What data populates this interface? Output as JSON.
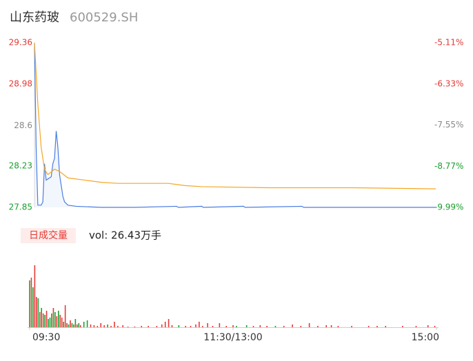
{
  "chart_data": [
    {
      "type": "line",
      "title": "山东药玻",
      "subtitle": "600529.SH",
      "ylim": [
        27.85,
        29.36
      ],
      "yticks": [
        29.36,
        28.98,
        28.6,
        {
          "value": 28.23,
          "label": "28.23"
        },
        27.85
      ],
      "y2lim": [
        -9.99,
        -5.11
      ],
      "y2ticks": [
        {
          "value": -5.11,
          "label": "-5.11%"
        },
        {
          "value": -6.33,
          "label": "-6.33%"
        },
        {
          "value": -7.55,
          "label": "-7.55%"
        },
        {
          "value": -8.77,
          "label": "-8.77%"
        },
        {
          "value": -9.99,
          "label": "-9.99%"
        }
      ],
      "tick_colors": [
        "#e53935",
        "#e53935",
        "#888888",
        "#1a9e2f",
        "#1a9e2f"
      ],
      "xlim": [
        0,
        240
      ],
      "series": [
        {
          "color": "#4a7de0",
          "x": [
            0,
            1,
            2,
            4,
            5,
            6,
            7,
            10,
            11,
            12,
            13,
            14,
            15,
            16,
            17,
            18,
            20,
            25,
            40,
            60,
            85,
            86,
            100,
            101,
            125,
            126,
            160,
            161,
            240
          ],
          "values": [
            29.36,
            28.4,
            27.87,
            27.87,
            27.9,
            28.25,
            28.1,
            28.13,
            28.25,
            28.3,
            28.55,
            28.4,
            28.15,
            28.05,
            27.95,
            27.9,
            27.87,
            27.86,
            27.85,
            27.85,
            27.86,
            27.85,
            27.86,
            27.85,
            27.86,
            27.85,
            27.86,
            27.85,
            27.85
          ]
        },
        {
          "color": "#f5a623",
          "x": [
            0,
            2,
            4,
            6,
            8,
            12,
            15,
            20,
            30,
            40,
            50,
            80,
            90,
            100,
            140,
            190,
            240
          ],
          "values": [
            29.36,
            28.8,
            28.4,
            28.2,
            28.15,
            28.2,
            28.18,
            28.12,
            28.1,
            28.08,
            28.07,
            28.07,
            28.05,
            28.04,
            28.03,
            28.03,
            28.02
          ]
        }
      ]
    },
    {
      "type": "bar",
      "title": "日成交量",
      "subtitle": "vol: 26.43万手",
      "xlim": [
        0,
        240
      ],
      "ylim": [
        0,
        90
      ],
      "xticks": [
        {
          "value": 0,
          "label": "09:30"
        },
        {
          "value": 120,
          "label": "11:30/13:00"
        },
        {
          "value": 240,
          "label": "15:00"
        }
      ],
      "x": [
        0,
        1,
        2,
        3,
        4,
        5,
        6,
        7,
        8,
        9,
        10,
        11,
        12,
        13,
        14,
        15,
        16,
        17,
        18,
        19,
        20,
        21,
        22,
        23,
        24,
        25,
        26,
        27,
        28,
        29,
        30,
        32,
        34,
        36,
        38,
        40,
        42,
        44,
        46,
        48,
        50,
        52,
        55,
        58,
        62,
        66,
        70,
        75,
        78,
        80,
        82,
        84,
        88,
        92,
        95,
        98,
        100,
        102,
        105,
        108,
        112,
        116,
        120,
        122,
        128,
        132,
        136,
        140,
        145,
        150,
        155,
        160,
        165,
        170,
        175,
        178,
        182,
        190,
        200,
        205,
        210,
        220,
        228,
        235,
        239
      ],
      "values": [
        68,
        72,
        58,
        90,
        44,
        42,
        22,
        28,
        20,
        18,
        24,
        12,
        14,
        20,
        28,
        22,
        16,
        24,
        18,
        14,
        8,
        32,
        6,
        4,
        10,
        6,
        4,
        12,
        4,
        6,
        3,
        8,
        10,
        4,
        3,
        2,
        6,
        3,
        4,
        2,
        8,
        2,
        3,
        1,
        1,
        2,
        2,
        2,
        4,
        8,
        12,
        3,
        3,
        2,
        2,
        4,
        8,
        2,
        6,
        2,
        6,
        2,
        3,
        2,
        3,
        2,
        3,
        2,
        2,
        2,
        4,
        2,
        6,
        2,
        3,
        3,
        2,
        2,
        2,
        2,
        2,
        2,
        2,
        3,
        2
      ],
      "colors": [
        "#1a9e2f",
        "#e53935",
        "#1a9e2f",
        "#e53935",
        "#e53935",
        "#1a9e2f",
        "#e53935",
        "#1a9e2f",
        "#e53935",
        "#1a9e2f",
        "#e53935",
        "#1a9e2f",
        "#1a9e2f",
        "#1a9e2f",
        "#e53935",
        "#1a9e2f",
        "#e53935",
        "#1a9e2f",
        "#e53935",
        "#e53935",
        "#1a9e2f",
        "#e53935",
        "#e53935",
        "#1a9e2f",
        "#e53935",
        "#1a9e2f",
        "#e53935",
        "#1a9e2f",
        "#e53935",
        "#1a9e2f",
        "#e53935",
        "#1a9e2f",
        "#1a9e2f",
        "#e53935",
        "#e53935",
        "#e53935",
        "#e53935",
        "#e53935",
        "#1a9e2f",
        "#e53935",
        "#e53935",
        "#e53935",
        "#e53935",
        "#e53935",
        "#e53935",
        "#e53935",
        "#e53935",
        "#e53935",
        "#e53935",
        "#e53935",
        "#e53935",
        "#e53935",
        "#1a9e2f",
        "#e53935",
        "#e53935",
        "#e53935",
        "#e53935",
        "#e53935",
        "#e53935",
        "#e53935",
        "#e53935",
        "#e53935",
        "#e53935",
        "#1a9e2f",
        "#1a9e2f",
        "#e53935",
        "#e53935",
        "#e53935",
        "#1a9e2f",
        "#e53935",
        "#e53935",
        "#e53935",
        "#e53935",
        "#e53935",
        "#e53935",
        "#e53935",
        "#e53935",
        "#e53935",
        "#e53935",
        "#e53935",
        "#e53935",
        "#e53935",
        "#e53935",
        "#e53935",
        "#e53935"
      ]
    }
  ]
}
